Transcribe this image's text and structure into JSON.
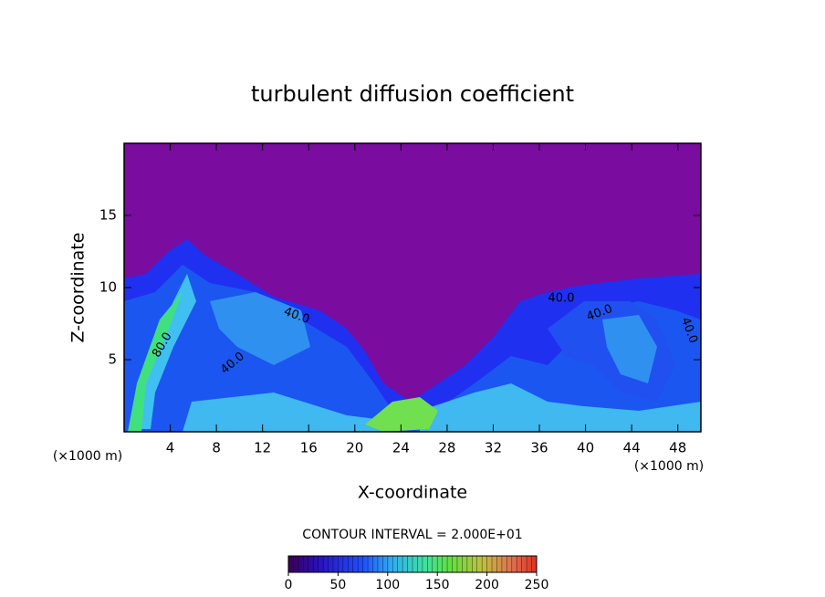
{
  "chart_data": {
    "type": "contour",
    "title": "turbulent diffusion coefficient",
    "x_label": "X-coordinate",
    "y_label": "Z-coordinate",
    "x_unit": "(×1000 m)",
    "y_unit": "(×1000 m)",
    "xlim": [
      0,
      50
    ],
    "xticks": [
      4,
      8,
      12,
      16,
      20,
      24,
      28,
      32,
      36,
      40,
      44,
      48
    ],
    "ylim": [
      0,
      20
    ],
    "yticks": [
      5,
      10,
      15
    ],
    "contour_interval_text": "CONTOUR INTERVAL = 2.000E+01",
    "clim": [
      0,
      250
    ],
    "cticks": [
      0,
      50,
      100,
      150,
      200,
      250
    ],
    "contour_labels": [
      "40.0",
      "40.0",
      "40.0",
      "40.0",
      "80.0",
      "40.0"
    ]
  }
}
